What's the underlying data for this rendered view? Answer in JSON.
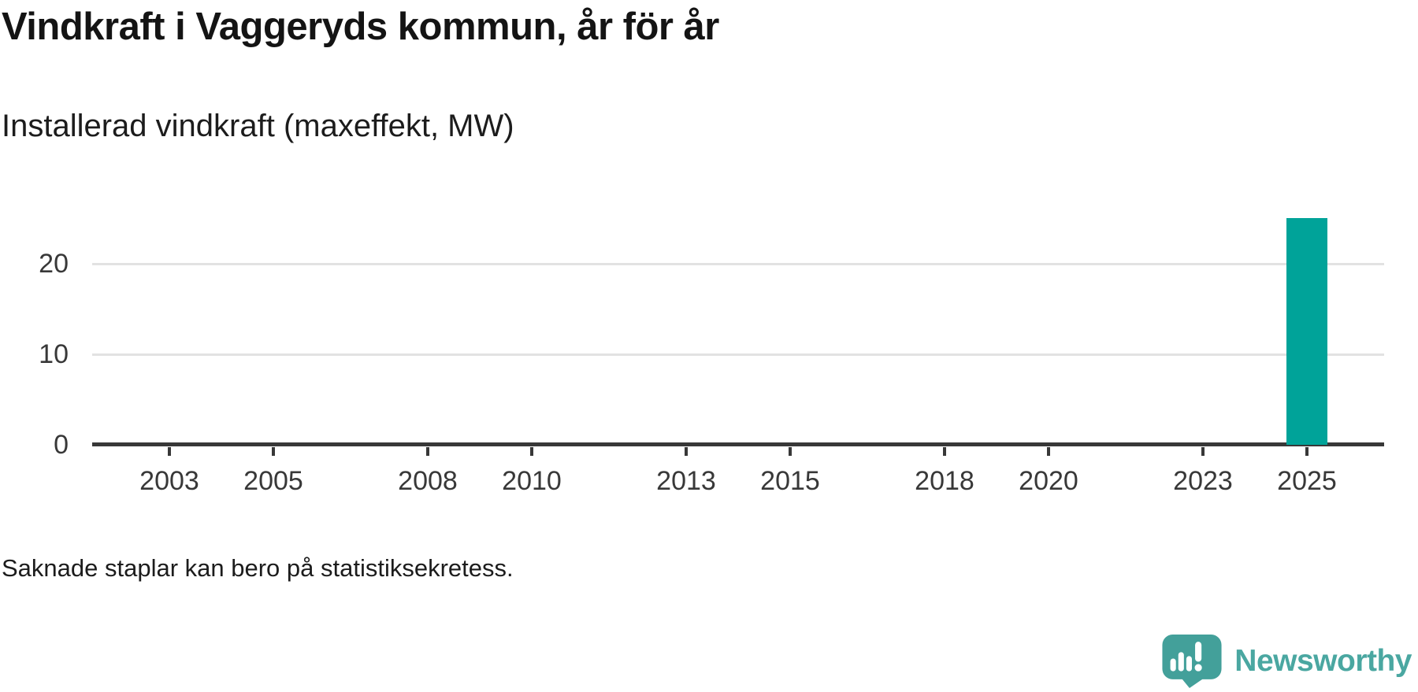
{
  "chart_data": {
    "type": "bar",
    "title": "Vindkraft i Vaggeryds kommun, år för år",
    "subtitle": "Installerad vindkraft (maxeffekt, MW)",
    "note": "Saknade staplar kan bero på statistiksekretess.",
    "x_domain": [
      2002,
      2026
    ],
    "x_ticks": [
      2003,
      2005,
      2008,
      2010,
      2013,
      2015,
      2018,
      2020,
      2023,
      2025
    ],
    "y_ticks": [
      0,
      10,
      20
    ],
    "ylim": [
      0,
      30
    ],
    "grid": "horizontal",
    "legend": "none",
    "bar_color": "#00a399",
    "axis_color": "#383838",
    "gridline_color": "#e2e2e2",
    "series": [
      {
        "name": "Installerad vindkraft (maxeffekt, MW)",
        "points": [
          {
            "x": 2025,
            "y": 25
          }
        ]
      }
    ]
  },
  "branding": {
    "wordmark": "Newsworthy",
    "logo_icon": "newsworthy-speech-bubble-bar-chart",
    "accent_color": "#4aa7a1",
    "bubble_color": "#43a09a"
  }
}
